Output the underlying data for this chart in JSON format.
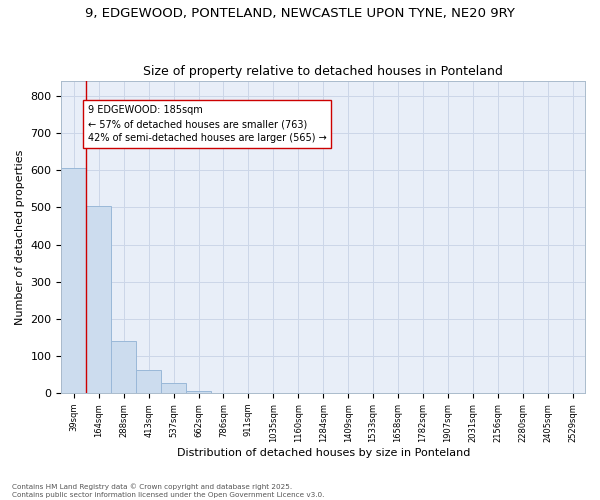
{
  "title_line1": "9, EDGEWOOD, PONTELAND, NEWCASTLE UPON TYNE, NE20 9RY",
  "title_line2": "Size of property relative to detached houses in Ponteland",
  "xlabel": "Distribution of detached houses by size in Ponteland",
  "ylabel": "Number of detached properties",
  "bar_color": "#ccdcee",
  "bar_edge_color": "#9ab8d8",
  "categories": [
    "39sqm",
    "164sqm",
    "288sqm",
    "413sqm",
    "537sqm",
    "662sqm",
    "786sqm",
    "911sqm",
    "1035sqm",
    "1160sqm",
    "1284sqm",
    "1409sqm",
    "1533sqm",
    "1658sqm",
    "1782sqm",
    "1907sqm",
    "2031sqm",
    "2156sqm",
    "2280sqm",
    "2405sqm",
    "2529sqm"
  ],
  "values": [
    605,
    503,
    141,
    63,
    28,
    5,
    1,
    0,
    0,
    0,
    0,
    0,
    0,
    0,
    0,
    0,
    0,
    0,
    0,
    0,
    0
  ],
  "ylim": [
    0,
    840
  ],
  "yticks": [
    0,
    100,
    200,
    300,
    400,
    500,
    600,
    700,
    800
  ],
  "property_line_x": 1.0,
  "annotation_text": "9 EDGEWOOD: 185sqm\n← 57% of detached houses are smaller (763)\n42% of semi-detached houses are larger (565) →",
  "grid_color": "#ccd6e8",
  "bg_color": "#e8eef8",
  "fig_color": "#ffffff",
  "footer_line1": "Contains HM Land Registry data © Crown copyright and database right 2025.",
  "footer_line2": "Contains public sector information licensed under the Open Government Licence v3.0."
}
